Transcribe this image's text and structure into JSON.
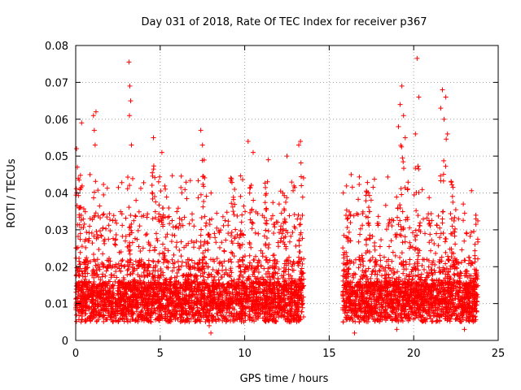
{
  "chart_data": {
    "type": "scatter",
    "title": "Day 031 of 2018, Rate Of TEC Index for receiver p367",
    "xlabel": "GPS time / hours",
    "ylabel": "ROTI / TECUs",
    "xlim": [
      0,
      25
    ],
    "ylim": [
      0,
      0.08
    ],
    "x_ticks": [
      0,
      5,
      10,
      15,
      20,
      25
    ],
    "y_ticks": [
      0,
      0.01,
      0.02,
      0.03,
      0.04,
      0.05,
      0.06,
      0.07,
      0.08
    ],
    "x_tick_labels": [
      "0",
      "5",
      "10",
      "15",
      "20",
      "25"
    ],
    "y_tick_labels": [
      "0",
      "0.01",
      "0.02",
      "0.03",
      "0.04",
      "0.05",
      "0.06",
      "0.07",
      "0.08"
    ],
    "grid": true,
    "marker": "+",
    "color": "#ff0000",
    "series": [
      {
        "name": "ROTI",
        "segments": [
          [
            0.0,
            13.5
          ],
          [
            15.8,
            23.8
          ]
        ],
        "points": [
          [
            0.05,
            0.052
          ],
          [
            0.1,
            0.047
          ],
          [
            0.15,
            0.044
          ],
          [
            0.25,
            0.041
          ],
          [
            0.35,
            0.059
          ],
          [
            1.05,
            0.061
          ],
          [
            1.2,
            0.062
          ],
          [
            1.1,
            0.057
          ],
          [
            1.15,
            0.053
          ],
          [
            3.15,
            0.0755
          ],
          [
            3.2,
            0.069
          ],
          [
            3.25,
            0.065
          ],
          [
            3.18,
            0.061
          ],
          [
            3.3,
            0.053
          ],
          [
            4.6,
            0.055
          ],
          [
            5.1,
            0.051
          ],
          [
            7.4,
            0.057
          ],
          [
            7.5,
            0.053
          ],
          [
            10.2,
            0.054
          ],
          [
            10.5,
            0.051
          ],
          [
            11.4,
            0.049
          ],
          [
            12.5,
            0.05
          ],
          [
            13.2,
            0.053
          ],
          [
            13.3,
            0.054
          ],
          [
            19.3,
            0.069
          ],
          [
            19.2,
            0.064
          ],
          [
            19.4,
            0.061
          ],
          [
            19.1,
            0.058
          ],
          [
            19.5,
            0.055
          ],
          [
            20.2,
            0.0765
          ],
          [
            20.3,
            0.066
          ],
          [
            20.1,
            0.056
          ],
          [
            21.7,
            0.068
          ],
          [
            21.9,
            0.066
          ],
          [
            21.6,
            0.063
          ],
          [
            21.8,
            0.06
          ],
          [
            22.0,
            0.056
          ],
          [
            0.2,
            0.008
          ],
          [
            0.5,
            0.012
          ],
          [
            0.8,
            0.009
          ],
          [
            1.0,
            0.011
          ],
          [
            1.3,
            0.014
          ],
          [
            1.6,
            0.009
          ],
          [
            1.9,
            0.013
          ],
          [
            2.2,
            0.01
          ],
          [
            2.5,
            0.008
          ],
          [
            2.8,
            0.012
          ],
          [
            3.0,
            0.007
          ],
          [
            3.4,
            0.011
          ],
          [
            3.7,
            0.009
          ],
          [
            4.0,
            0.013
          ],
          [
            4.3,
            0.008
          ],
          [
            4.7,
            0.012
          ],
          [
            5.0,
            0.01
          ],
          [
            5.3,
            0.006
          ],
          [
            5.6,
            0.011
          ],
          [
            5.9,
            0.009
          ],
          [
            6.2,
            0.013
          ],
          [
            6.5,
            0.008
          ],
          [
            6.8,
            0.012
          ],
          [
            7.1,
            0.01
          ],
          [
            7.6,
            0.009
          ],
          [
            7.9,
            0.004
          ],
          [
            8.0,
            0.002
          ],
          [
            8.2,
            0.011
          ],
          [
            8.5,
            0.008
          ],
          [
            8.8,
            0.013
          ],
          [
            9.1,
            0.01
          ],
          [
            9.4,
            0.007
          ],
          [
            9.7,
            0.012
          ],
          [
            10.0,
            0.009
          ],
          [
            10.3,
            0.011
          ],
          [
            10.6,
            0.008
          ],
          [
            10.9,
            0.013
          ],
          [
            11.2,
            0.01
          ],
          [
            11.5,
            0.007
          ],
          [
            11.8,
            0.012
          ],
          [
            12.1,
            0.009
          ],
          [
            12.4,
            0.011
          ],
          [
            12.7,
            0.008
          ],
          [
            13.0,
            0.012
          ],
          [
            13.4,
            0.01
          ],
          [
            16.0,
            0.011
          ],
          [
            16.3,
            0.008
          ],
          [
            16.6,
            0.012
          ],
          [
            16.9,
            0.009
          ],
          [
            17.2,
            0.013
          ],
          [
            17.5,
            0.007
          ],
          [
            17.8,
            0.011
          ],
          [
            18.1,
            0.009
          ],
          [
            18.4,
            0.012
          ],
          [
            18.7,
            0.008
          ],
          [
            19.0,
            0.003
          ],
          [
            19.6,
            0.011
          ],
          [
            19.9,
            0.009
          ],
          [
            20.4,
            0.012
          ],
          [
            20.7,
            0.008
          ],
          [
            21.0,
            0.013
          ],
          [
            21.3,
            0.009
          ],
          [
            21.5,
            0.011
          ],
          [
            22.2,
            0.012
          ],
          [
            22.5,
            0.008
          ],
          [
            22.8,
            0.011
          ],
          [
            23.1,
            0.009
          ],
          [
            23.4,
            0.012
          ],
          [
            23.7,
            0.008
          ],
          [
            16.5,
            0.002
          ],
          [
            23.0,
            0.003
          ]
        ]
      }
    ]
  }
}
